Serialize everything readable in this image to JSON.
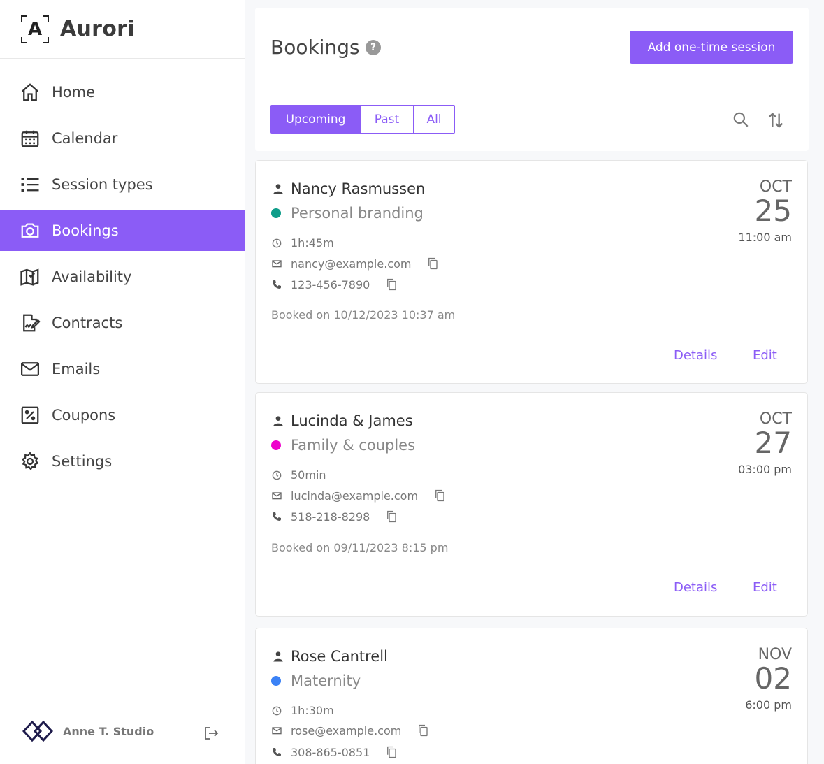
{
  "brand": {
    "letter": "A",
    "name": "Aurori"
  },
  "nav": [
    {
      "label": "Home",
      "icon": "home-icon"
    },
    {
      "label": "Calendar",
      "icon": "calendar-icon"
    },
    {
      "label": "Session types",
      "icon": "list-icon"
    },
    {
      "label": "Bookings",
      "icon": "camera-icon",
      "active": true
    },
    {
      "label": "Availability",
      "icon": "book-icon"
    },
    {
      "label": "Contracts",
      "icon": "contract-icon"
    },
    {
      "label": "Emails",
      "icon": "mail-icon"
    },
    {
      "label": "Coupons",
      "icon": "coupon-icon"
    },
    {
      "label": "Settings",
      "icon": "gear-icon"
    }
  ],
  "footer": {
    "studio_name": "Anne T. Studio"
  },
  "header": {
    "title": "Bookings",
    "help": "?",
    "add_label": "Add one-time session",
    "filters": [
      "Upcoming",
      "Past",
      "All"
    ],
    "active_filter": "Upcoming"
  },
  "colors": {
    "accent": "#8b5cf6",
    "personal_branding": "#0f9d8a",
    "family": "#ee00cc",
    "maternity": "#3b82f6"
  },
  "bookings": [
    {
      "client": "Nancy Rasmussen",
      "session_type": "Personal branding",
      "duration": "1h:45m",
      "email": "nancy@example.com",
      "phone": "123-456-7890",
      "booked_on": "Booked on 10/12/2023 10:37 am",
      "month": "OCT",
      "day": "25",
      "time": "11:00 am",
      "details_label": "Details",
      "edit_label": "Edit"
    },
    {
      "client": "Lucinda & James",
      "session_type": "Family & couples",
      "duration": "50min",
      "email": "lucinda@example.com",
      "phone": "518-218-8298",
      "booked_on": "Booked on 09/11/2023 8:15 pm",
      "month": "OCT",
      "day": "27",
      "time": "03:00 pm",
      "details_label": "Details",
      "edit_label": "Edit"
    },
    {
      "client": "Rose Cantrell",
      "session_type": "Maternity",
      "duration": "1h:30m",
      "email": "rose@example.com",
      "phone": "308-865-0851",
      "month": "NOV",
      "day": "02",
      "time": "6:00 pm"
    }
  ]
}
